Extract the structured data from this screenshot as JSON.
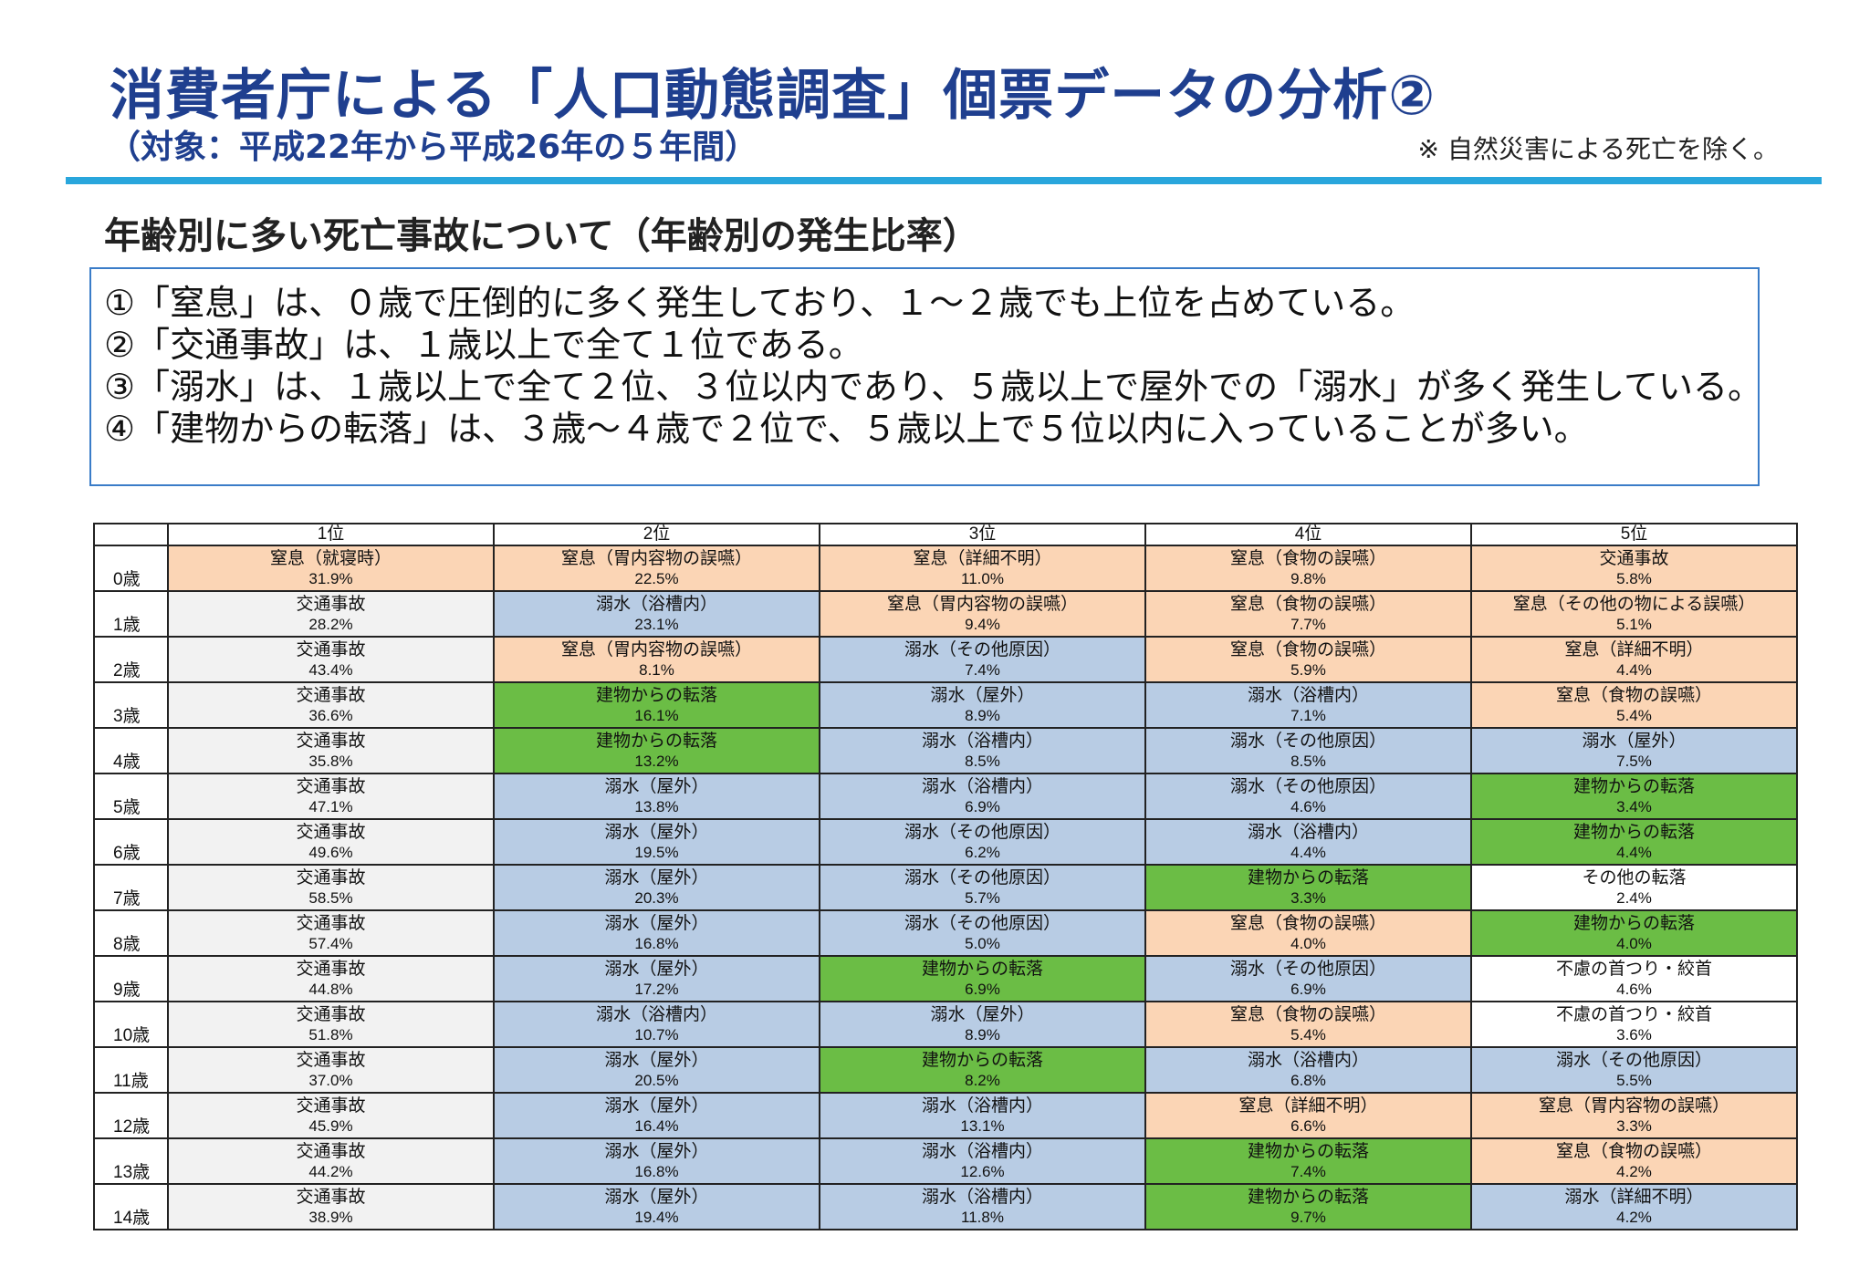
{
  "header": {
    "title": "消費者庁による「人口動態調査」個票データの分析②",
    "subtitle": "（対象：平成22年から平成26年の５年間）",
    "note": "※ 自然災害による死亡を除く。"
  },
  "section_title": "年齢別に多い死亡事故について（年齢別の発生比率）",
  "summary": [
    "①「窒息」は、０歳で圧倒的に多く発生しており、１～２歳でも上位を占めている。",
    "②「交通事故」は、１歳以上で全て１位である。",
    "③「溺水」は、１歳以上で全て２位、３位以内であり、５歳以上で屋外での「溺水」が多く発生している。",
    "④「建物からの転落」は、３歳～４歳で２位で、５歳以上で５位以内に入っていることが多い。"
  ],
  "colors": {
    "交通事故": "#f2f2f2",
    "窒息": "#fbd5b5",
    "溺水": "#b8cce4",
    "建物からの転落": "#6bbd45",
    "その他": "#ffffff",
    "accent_rule": "#29a6dc",
    "title": "#1f3f8f"
  },
  "table": {
    "columns": [
      "",
      "1位",
      "2位",
      "3位",
      "4位",
      "5位"
    ],
    "rows": [
      {
        "age": "0歳",
        "cells": [
          {
            "n": "窒息（就寝時）",
            "p": "31.9%",
            "c": "orange"
          },
          {
            "n": "窒息（胃内容物の誤嚥）",
            "p": "22.5%",
            "c": "orange"
          },
          {
            "n": "窒息（詳細不明）",
            "p": "11.0%",
            "c": "orange"
          },
          {
            "n": "窒息（食物の誤嚥）",
            "p": "9.8%",
            "c": "orange"
          },
          {
            "n": "交通事故",
            "p": "5.8%",
            "c": "orange"
          }
        ]
      },
      {
        "age": "1歳",
        "cells": [
          {
            "n": "交通事故",
            "p": "28.2%",
            "c": "gray"
          },
          {
            "n": "溺水（浴槽内）",
            "p": "23.1%",
            "c": "blue"
          },
          {
            "n": "窒息（胃内容物の誤嚥）",
            "p": "9.4%",
            "c": "orange"
          },
          {
            "n": "窒息（食物の誤嚥）",
            "p": "7.7%",
            "c": "orange"
          },
          {
            "n": "窒息（その他の物による誤嚥）",
            "p": "5.1%",
            "c": "orange"
          }
        ]
      },
      {
        "age": "2歳",
        "cells": [
          {
            "n": "交通事故",
            "p": "43.4%",
            "c": "gray"
          },
          {
            "n": "窒息（胃内容物の誤嚥）",
            "p": "8.1%",
            "c": "orange"
          },
          {
            "n": "溺水（その他原因）",
            "p": "7.4%",
            "c": "blue"
          },
          {
            "n": "窒息（食物の誤嚥）",
            "p": "5.9%",
            "c": "orange"
          },
          {
            "n": "窒息（詳細不明）",
            "p": "4.4%",
            "c": "orange"
          }
        ]
      },
      {
        "age": "3歳",
        "cells": [
          {
            "n": "交通事故",
            "p": "36.6%",
            "c": "gray"
          },
          {
            "n": "建物からの転落",
            "p": "16.1%",
            "c": "green"
          },
          {
            "n": "溺水（屋外）",
            "p": "8.9%",
            "c": "blue"
          },
          {
            "n": "溺水（浴槽内）",
            "p": "7.1%",
            "c": "blue"
          },
          {
            "n": "窒息（食物の誤嚥）",
            "p": "5.4%",
            "c": "orange"
          }
        ]
      },
      {
        "age": "4歳",
        "cells": [
          {
            "n": "交通事故",
            "p": "35.8%",
            "c": "gray"
          },
          {
            "n": "建物からの転落",
            "p": "13.2%",
            "c": "green"
          },
          {
            "n": "溺水（浴槽内）",
            "p": "8.5%",
            "c": "blue"
          },
          {
            "n": "溺水（その他原因）",
            "p": "8.5%",
            "c": "blue"
          },
          {
            "n": "溺水（屋外）",
            "p": "7.5%",
            "c": "blue"
          }
        ]
      },
      {
        "age": "5歳",
        "cells": [
          {
            "n": "交通事故",
            "p": "47.1%",
            "c": "gray"
          },
          {
            "n": "溺水（屋外）",
            "p": "13.8%",
            "c": "blue"
          },
          {
            "n": "溺水（浴槽内）",
            "p": "6.9%",
            "c": "blue"
          },
          {
            "n": "溺水（その他原因）",
            "p": "4.6%",
            "c": "blue"
          },
          {
            "n": "建物からの転落",
            "p": "3.4%",
            "c": "green"
          }
        ]
      },
      {
        "age": "6歳",
        "cells": [
          {
            "n": "交通事故",
            "p": "49.6%",
            "c": "gray"
          },
          {
            "n": "溺水（屋外）",
            "p": "19.5%",
            "c": "blue"
          },
          {
            "n": "溺水（その他原因）",
            "p": "6.2%",
            "c": "blue"
          },
          {
            "n": "溺水（浴槽内）",
            "p": "4.4%",
            "c": "blue"
          },
          {
            "n": "建物からの転落",
            "p": "4.4%",
            "c": "green"
          }
        ]
      },
      {
        "age": "7歳",
        "cells": [
          {
            "n": "交通事故",
            "p": "58.5%",
            "c": "gray"
          },
          {
            "n": "溺水（屋外）",
            "p": "20.3%",
            "c": "blue"
          },
          {
            "n": "溺水（その他原因）",
            "p": "5.7%",
            "c": "blue"
          },
          {
            "n": "建物からの転落",
            "p": "3.3%",
            "c": "green"
          },
          {
            "n": "その他の転落",
            "p": "2.4%",
            "c": "white"
          }
        ]
      },
      {
        "age": "8歳",
        "cells": [
          {
            "n": "交通事故",
            "p": "57.4%",
            "c": "gray"
          },
          {
            "n": "溺水（屋外）",
            "p": "16.8%",
            "c": "blue"
          },
          {
            "n": "溺水（その他原因）",
            "p": "5.0%",
            "c": "blue"
          },
          {
            "n": "窒息（食物の誤嚥）",
            "p": "4.0%",
            "c": "orange"
          },
          {
            "n": "建物からの転落",
            "p": "4.0%",
            "c": "green"
          }
        ]
      },
      {
        "age": "9歳",
        "cells": [
          {
            "n": "交通事故",
            "p": "44.8%",
            "c": "gray"
          },
          {
            "n": "溺水（屋外）",
            "p": "17.2%",
            "c": "blue"
          },
          {
            "n": "建物からの転落",
            "p": "6.9%",
            "c": "green"
          },
          {
            "n": "溺水（その他原因）",
            "p": "6.9%",
            "c": "blue"
          },
          {
            "n": "不慮の首つり・絞首",
            "p": "4.6%",
            "c": "white"
          }
        ]
      },
      {
        "age": "10歳",
        "cells": [
          {
            "n": "交通事故",
            "p": "51.8%",
            "c": "gray"
          },
          {
            "n": "溺水（浴槽内）",
            "p": "10.7%",
            "c": "blue"
          },
          {
            "n": "溺水（屋外）",
            "p": "8.9%",
            "c": "blue"
          },
          {
            "n": "窒息（食物の誤嚥）",
            "p": "5.4%",
            "c": "orange"
          },
          {
            "n": "不慮の首つり・絞首",
            "p": "3.6%",
            "c": "white"
          }
        ]
      },
      {
        "age": "11歳",
        "cells": [
          {
            "n": "交通事故",
            "p": "37.0%",
            "c": "gray"
          },
          {
            "n": "溺水（屋外）",
            "p": "20.5%",
            "c": "blue"
          },
          {
            "n": "建物からの転落",
            "p": "8.2%",
            "c": "green"
          },
          {
            "n": "溺水（浴槽内）",
            "p": "6.8%",
            "c": "blue"
          },
          {
            "n": "溺水（その他原因）",
            "p": "5.5%",
            "c": "blue"
          }
        ]
      },
      {
        "age": "12歳",
        "cells": [
          {
            "n": "交通事故",
            "p": "45.9%",
            "c": "gray"
          },
          {
            "n": "溺水（屋外）",
            "p": "16.4%",
            "c": "blue"
          },
          {
            "n": "溺水（浴槽内）",
            "p": "13.1%",
            "c": "blue"
          },
          {
            "n": "窒息（詳細不明）",
            "p": "6.6%",
            "c": "orange"
          },
          {
            "n": "窒息（胃内容物の誤嚥）",
            "p": "3.3%",
            "c": "orange"
          }
        ]
      },
      {
        "age": "13歳",
        "cells": [
          {
            "n": "交通事故",
            "p": "44.2%",
            "c": "gray"
          },
          {
            "n": "溺水（屋外）",
            "p": "16.8%",
            "c": "blue"
          },
          {
            "n": "溺水（浴槽内）",
            "p": "12.6%",
            "c": "blue"
          },
          {
            "n": "建物からの転落",
            "p": "7.4%",
            "c": "green"
          },
          {
            "n": "窒息（食物の誤嚥）",
            "p": "4.2%",
            "c": "orange"
          }
        ]
      },
      {
        "age": "14歳",
        "cells": [
          {
            "n": "交通事故",
            "p": "38.9%",
            "c": "gray"
          },
          {
            "n": "溺水（屋外）",
            "p": "19.4%",
            "c": "blue"
          },
          {
            "n": "溺水（浴槽内）",
            "p": "11.8%",
            "c": "blue"
          },
          {
            "n": "建物からの転落",
            "p": "9.7%",
            "c": "green"
          },
          {
            "n": "溺水（詳細不明）",
            "p": "4.2%",
            "c": "blue"
          }
        ]
      }
    ]
  }
}
